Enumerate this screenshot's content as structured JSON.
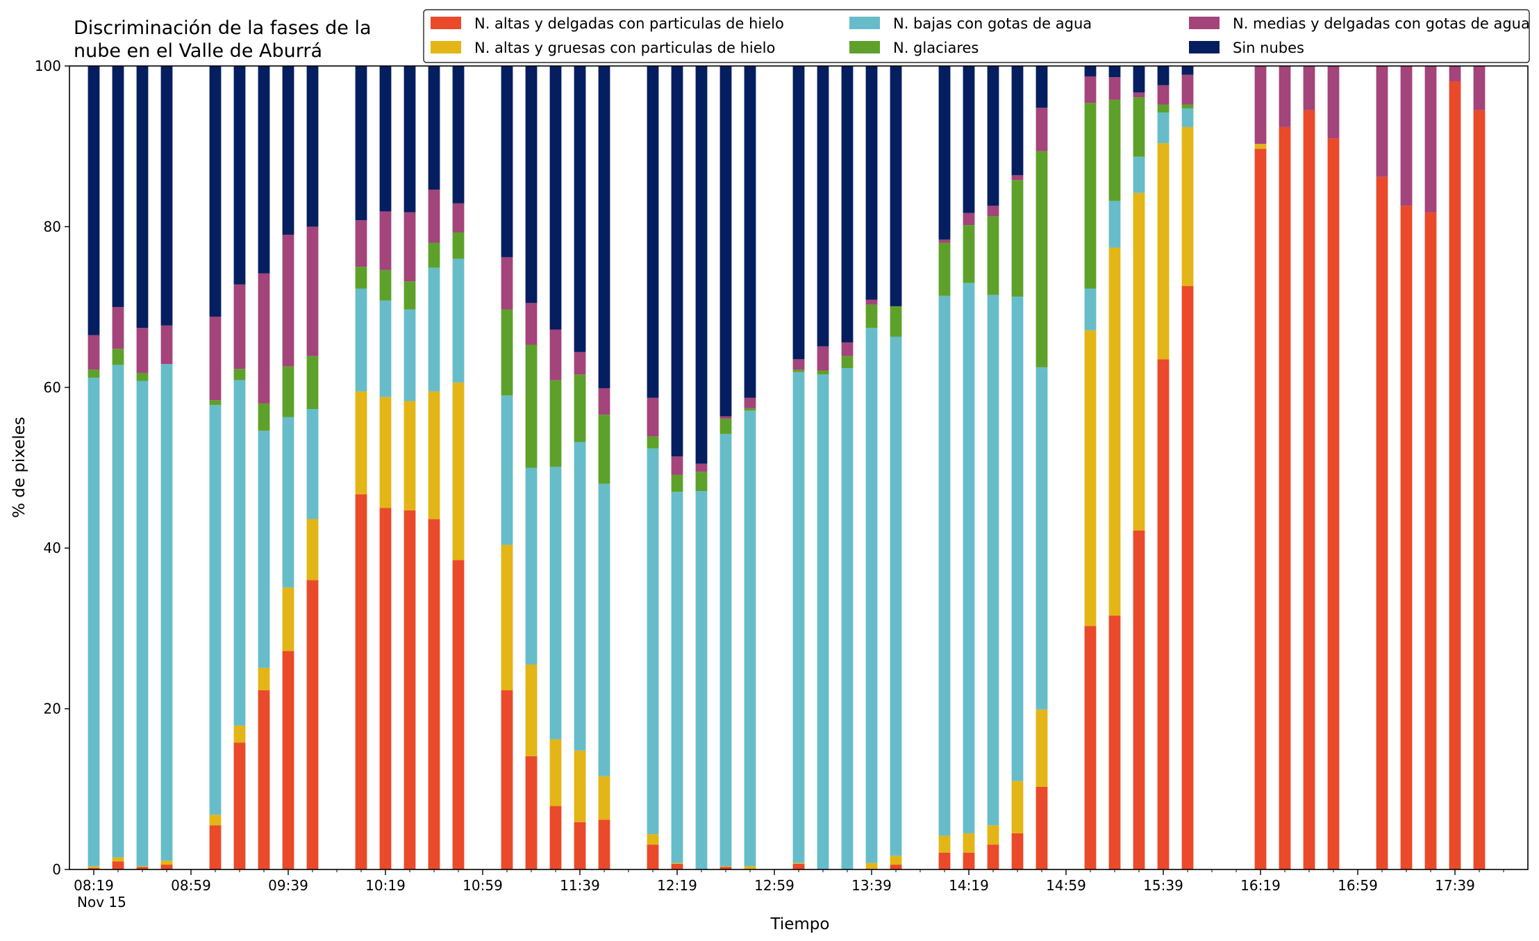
{
  "chart_data": {
    "type": "bar",
    "stacked": true,
    "title_lines": [
      "Discriminación de la fases de la",
      "nube en el Valle de Aburrá"
    ],
    "xlabel": "Tiempo",
    "ylabel": "% de pixeles",
    "ylim": [
      0,
      100
    ],
    "yticks": [
      0,
      20,
      40,
      60,
      80,
      100
    ],
    "xlim_minutes_after_0819": [
      -10,
      590
    ],
    "xtick_labels": [
      {
        "t": 0,
        "label": "08:19",
        "sub": "Nov 15"
      },
      {
        "t": 40,
        "label": "08:59"
      },
      {
        "t": 80,
        "label": "09:39"
      },
      {
        "t": 120,
        "label": "10:19"
      },
      {
        "t": 160,
        "label": "10:59"
      },
      {
        "t": 200,
        "label": "11:39"
      },
      {
        "t": 240,
        "label": "12:19"
      },
      {
        "t": 280,
        "label": "12:59"
      },
      {
        "t": 320,
        "label": "13:39"
      },
      {
        "t": 360,
        "label": "14:19"
      },
      {
        "t": 400,
        "label": "14:59"
      },
      {
        "t": 440,
        "label": "15:39"
      },
      {
        "t": 480,
        "label": "16:19"
      },
      {
        "t": 520,
        "label": "16:59"
      },
      {
        "t": 560,
        "label": "17:39"
      }
    ],
    "legend_position": "top-right",
    "legend": [
      {
        "name": "N. altas y delgadas con particulas de hielo",
        "color": "#ea4a2a"
      },
      {
        "name": "N. altas y gruesas con particulas de hielo",
        "color": "#e3b516"
      },
      {
        "name": "N. bajas con gotas de agua",
        "color": "#66bdc9"
      },
      {
        "name": "N. glaciares",
        "color": "#5da12b"
      },
      {
        "name": "N. medias y delgadas con gotas de agua",
        "color": "#a3447a"
      },
      {
        "name": "Sin nubes",
        "color": "#041e60"
      }
    ],
    "bar_times_minutes_after_0819": [
      0,
      10,
      20,
      30,
      50,
      60,
      70,
      80,
      90,
      110,
      120,
      130,
      140,
      150,
      170,
      180,
      190,
      200,
      210,
      230,
      240,
      250,
      260,
      270,
      290,
      300,
      310,
      320,
      330,
      350,
      360,
      370,
      380,
      390,
      410,
      420,
      430,
      440,
      450,
      480,
      490,
      500,
      510,
      530,
      540,
      550,
      560,
      570
    ],
    "series": [
      {
        "name": "N. altas y delgadas con particulas de hielo",
        "values": [
          0.2,
          1.0,
          0.3,
          0.6,
          5.5,
          15.8,
          22.3,
          27.2,
          36.0,
          46.7,
          45.0,
          44.7,
          43.6,
          38.5,
          22.3,
          14.1,
          7.9,
          5.9,
          6.2,
          3.1,
          0.7,
          0.0,
          0.3,
          0.0,
          0.7,
          0.0,
          0.0,
          0.1,
          0.6,
          2.1,
          2.1,
          3.1,
          4.5,
          10.3,
          30.3,
          31.6,
          42.2,
          63.5,
          72.6,
          89.7,
          92.4,
          94.5,
          91.0,
          86.2,
          82.6,
          81.8,
          98.1,
          94.5
        ]
      },
      {
        "name": "N. altas y gruesas con particulas de hielo",
        "values": [
          0.2,
          0.5,
          0.1,
          0.5,
          1.3,
          2.1,
          2.8,
          7.9,
          7.6,
          12.8,
          13.8,
          13.6,
          15.9,
          22.1,
          18.1,
          11.4,
          8.3,
          8.9,
          5.4,
          1.3,
          0.1,
          0.0,
          0.1,
          0.4,
          0.1,
          0.0,
          0.0,
          0.7,
          1.1,
          2.1,
          2.4,
          2.4,
          6.5,
          9.6,
          36.8,
          45.8,
          42.0,
          26.9,
          19.8,
          0.6,
          0.0,
          0.0,
          0.0,
          0.0,
          0.0,
          0.0,
          0.0,
          0.0
        ]
      },
      {
        "name": "N. bajas con gotas de agua",
        "values": [
          60.8,
          61.3,
          60.4,
          61.8,
          51.0,
          43.0,
          29.5,
          21.2,
          13.7,
          12.8,
          12.0,
          11.4,
          15.4,
          15.4,
          18.6,
          24.5,
          33.9,
          38.4,
          36.4,
          48.0,
          46.2,
          47.1,
          53.8,
          56.7,
          61.1,
          61.6,
          62.4,
          66.6,
          64.6,
          67.2,
          68.5,
          66.0,
          60.3,
          42.6,
          5.2,
          5.8,
          4.5,
          3.8,
          2.3,
          0.0,
          0.0,
          0.0,
          0.0,
          0.0,
          0.0,
          0.0,
          0.0,
          0.0
        ]
      },
      {
        "name": "N. glaciares",
        "values": [
          1.0,
          2.0,
          1.0,
          0.0,
          0.6,
          1.4,
          3.4,
          6.3,
          6.6,
          2.7,
          3.8,
          3.5,
          3.1,
          3.3,
          10.7,
          15.3,
          10.8,
          8.4,
          8.6,
          1.5,
          2.1,
          2.4,
          1.9,
          0.3,
          0.3,
          0.5,
          1.5,
          2.9,
          3.8,
          6.6,
          7.2,
          9.8,
          14.5,
          26.9,
          23.1,
          12.6,
          7.4,
          1.0,
          0.5,
          0.0,
          0.0,
          0.0,
          0.0,
          0.0,
          0.0,
          0.0,
          0.0,
          0.0
        ]
      },
      {
        "name": "N. medias y delgadas con gotas de agua",
        "values": [
          4.3,
          5.2,
          5.6,
          4.8,
          10.4,
          10.5,
          16.2,
          16.4,
          16.1,
          5.8,
          7.3,
          8.6,
          6.6,
          3.6,
          6.5,
          5.2,
          6.3,
          2.8,
          3.3,
          4.8,
          2.3,
          1.0,
          0.3,
          1.3,
          1.3,
          3.0,
          1.7,
          0.6,
          0.0,
          0.4,
          1.5,
          1.3,
          0.6,
          5.4,
          3.3,
          2.8,
          0.6,
          2.4,
          3.7,
          9.7,
          7.6,
          5.5,
          9.0,
          13.8,
          17.4,
          18.2,
          1.9,
          5.5
        ]
      },
      {
        "name": "Sin nubes",
        "values": [
          33.5,
          30.0,
          32.6,
          32.3,
          31.2,
          27.2,
          25.8,
          21.0,
          20.0,
          19.2,
          18.1,
          18.2,
          15.4,
          17.1,
          23.8,
          29.5,
          32.8,
          35.6,
          40.1,
          41.3,
          48.6,
          49.5,
          43.6,
          41.3,
          36.5,
          34.9,
          34.4,
          29.1,
          29.9,
          21.6,
          18.3,
          17.4,
          13.6,
          5.2,
          1.3,
          1.4,
          3.3,
          2.4,
          1.1,
          0.0,
          0.0,
          0.0,
          0.0,
          0.0,
          0.0,
          0.0,
          0.0,
          0.0
        ]
      }
    ]
  }
}
